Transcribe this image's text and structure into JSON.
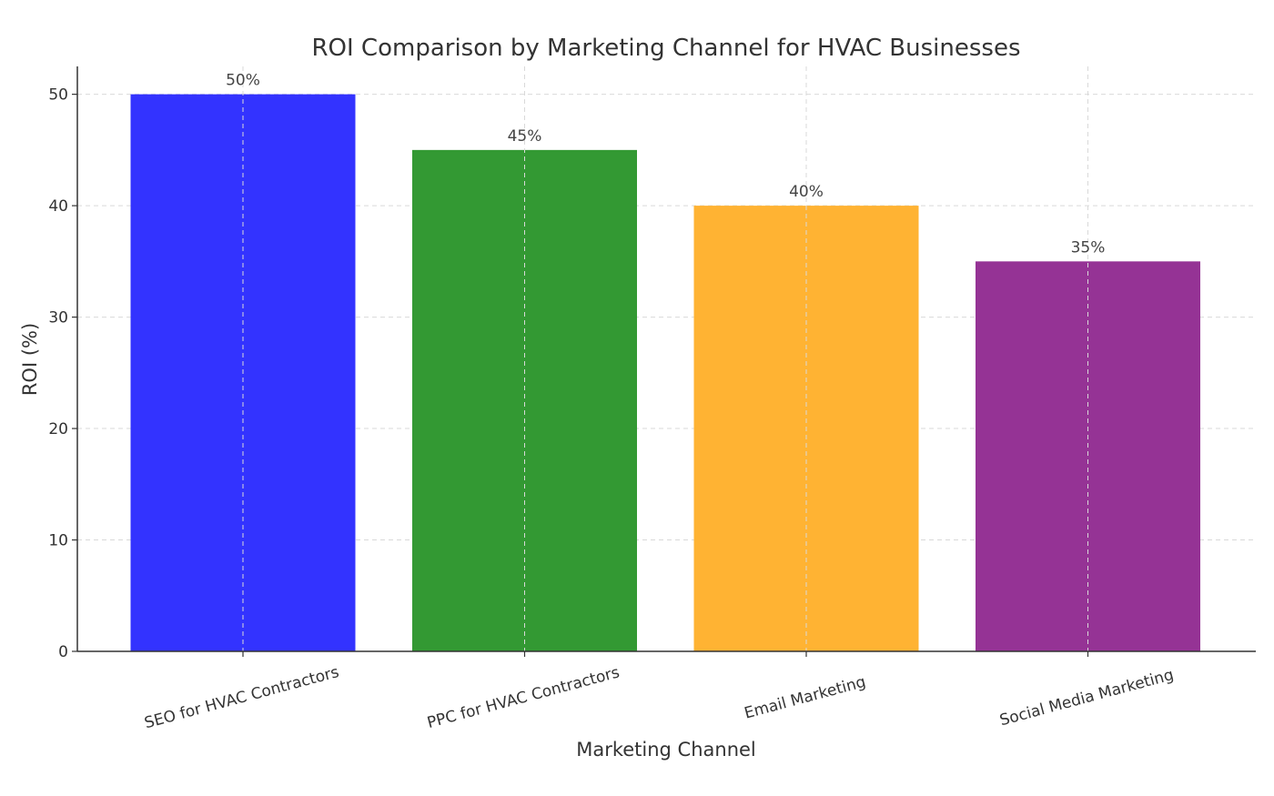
{
  "chart_data": {
    "type": "bar",
    "title": "ROI Comparison by Marketing Channel for HVAC Businesses",
    "xlabel": "Marketing Channel",
    "ylabel": "ROI (%)",
    "categories": [
      "SEO for HVAC Contractors",
      "PPC for HVAC Contractors",
      "Email Marketing",
      "Social Media Marketing"
    ],
    "values": [
      50,
      45,
      40,
      35
    ],
    "data_labels": [
      "50%",
      "45%",
      "40%",
      "35%"
    ],
    "colors": [
      "#3333ff",
      "#339933",
      "#ffb333",
      "#953395"
    ],
    "ylim": [
      0,
      52.5
    ],
    "yticks": [
      0,
      10,
      20,
      30,
      40,
      50
    ],
    "grid": true
  }
}
